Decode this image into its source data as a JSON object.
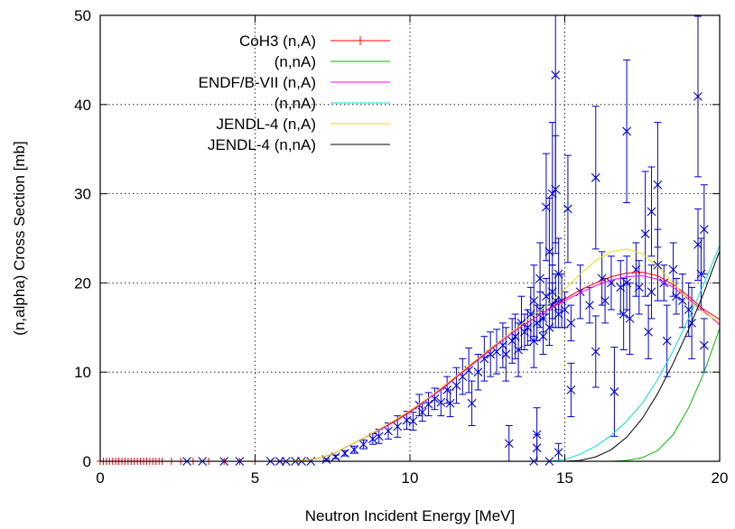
{
  "chart_data": {
    "type": "line",
    "title": "",
    "xlabel": "Neutron Incident Energy [MeV]",
    "ylabel": "(n,alpha) Cross Section [mb]",
    "xlim": [
      0,
      20
    ],
    "ylim": [
      0,
      50
    ],
    "xticks": [
      0,
      5,
      10,
      15,
      20
    ],
    "yticks": [
      0,
      10,
      20,
      30,
      40,
      50
    ],
    "grid": true,
    "legend_position": "top-left",
    "series": [
      {
        "name": "CoH3 (n,A)",
        "color": "#ff0000",
        "marker": "plus",
        "x": [
          0.0,
          0.1,
          0.2,
          0.3,
          0.4,
          0.5,
          0.6,
          0.7,
          0.8,
          0.9,
          1.0,
          1.1,
          1.2,
          1.3,
          1.4,
          1.5,
          1.6,
          1.7,
          1.8,
          1.9,
          2.0,
          2.3,
          2.6,
          3.0,
          3.5,
          4.0,
          4.5,
          5.0,
          5.5,
          6.0,
          6.5,
          7.0,
          7.5,
          8.0,
          8.5,
          9.0,
          9.5,
          10.0,
          10.5,
          11.0,
          11.5,
          12.0,
          12.5,
          13.0,
          13.5,
          14.0,
          14.5,
          15.0,
          15.5,
          16.0,
          16.5,
          17.0,
          17.5,
          18.0,
          18.5,
          19.0,
          19.5,
          20.0
        ],
        "y": [
          0,
          0,
          0,
          0,
          0,
          0,
          0,
          0,
          0,
          0,
          0,
          0,
          0,
          0,
          0,
          0,
          0,
          0,
          0,
          0,
          0,
          0,
          0,
          0,
          0,
          0,
          0,
          0,
          0,
          0.02,
          0.1,
          0.3,
          0.8,
          1.7,
          2.6,
          3.5,
          4.5,
          5.6,
          6.8,
          8.1,
          9.5,
          10.9,
          12.3,
          13.6,
          14.9,
          16.0,
          17.1,
          18.2,
          19.2,
          20.0,
          20.7,
          21.1,
          21.2,
          20.8,
          19.8,
          18.5,
          17.0,
          15.9
        ]
      },
      {
        "name": "(n,nA)",
        "color": "#00c000",
        "x": [
          14.5,
          15.0,
          15.5,
          16.0,
          16.5,
          17.0,
          17.5,
          18.0,
          18.5,
          19.0,
          19.5,
          20.0
        ],
        "y": [
          0,
          0,
          0,
          0,
          0,
          0.1,
          0.4,
          1.2,
          3.0,
          6.0,
          10.0,
          14.9
        ]
      },
      {
        "name": "ENDF/B-VII (n,A)",
        "color": "#ff00ff",
        "x": [
          5.0,
          5.5,
          6.0,
          6.5,
          7.0,
          7.5,
          8.0,
          8.5,
          9.0,
          9.5,
          10.0,
          10.5,
          11.0,
          11.5,
          12.0,
          12.5,
          13.0,
          13.5,
          14.0,
          14.5,
          15.0,
          15.5,
          16.0,
          16.5,
          17.0,
          17.5,
          18.0,
          18.5,
          19.0,
          19.5,
          20.0
        ],
        "y": [
          0,
          0,
          0.02,
          0.1,
          0.3,
          0.8,
          1.7,
          2.6,
          3.5,
          4.4,
          5.5,
          6.8,
          8.0,
          9.4,
          10.8,
          12.2,
          13.6,
          14.9,
          16.0,
          17.1,
          18.0,
          18.9,
          19.7,
          20.3,
          20.7,
          20.8,
          20.4,
          19.5,
          18.2,
          16.8,
          15.3
        ]
      },
      {
        "name": "(n,nA)",
        "color": "#00e0e0",
        "x": [
          14.5,
          15.0,
          15.5,
          16.0,
          16.5,
          17.0,
          17.5,
          18.0,
          18.5,
          19.0,
          19.5,
          20.0
        ],
        "y": [
          0,
          0.2,
          0.8,
          1.7,
          2.9,
          4.5,
          6.5,
          9.2,
          12.4,
          16.0,
          20.0,
          24.2
        ]
      },
      {
        "name": "JENDL-4 (n,A)",
        "color": "#e0e000",
        "x": [
          5.0,
          5.5,
          6.0,
          6.5,
          7.0,
          7.5,
          8.0,
          8.5,
          9.0,
          9.5,
          10.0,
          10.5,
          11.0,
          11.5,
          12.0,
          12.5,
          13.0,
          13.5,
          14.0,
          14.5,
          15.0,
          15.5,
          16.0,
          16.5,
          17.0,
          17.5,
          18.0,
          18.5,
          19.0,
          19.5,
          20.0
        ],
        "y": [
          0,
          0,
          0.02,
          0.1,
          0.3,
          0.8,
          1.7,
          2.6,
          3.6,
          4.6,
          5.7,
          6.9,
          8.2,
          9.6,
          11.0,
          12.4,
          13.8,
          15.1,
          16.4,
          17.7,
          19.3,
          21.0,
          22.5,
          23.5,
          23.8,
          23.3,
          21.8,
          20.0,
          18.0,
          16.6,
          15.6
        ]
      },
      {
        "name": "JENDL-4 (n,nA)",
        "color": "#000000",
        "x": [
          14.5,
          15.0,
          15.5,
          16.0,
          16.5,
          17.0,
          17.5,
          18.0,
          18.5,
          19.0,
          19.5,
          20.0
        ],
        "y": [
          0,
          0,
          0.1,
          0.5,
          1.3,
          2.7,
          4.8,
          7.6,
          11.0,
          14.8,
          19.0,
          23.6
        ]
      }
    ],
    "experimental": {
      "color": "#0000d0",
      "marker": "cross",
      "points": [
        [
          2.8,
          0,
          0
        ],
        [
          3.3,
          0,
          0
        ],
        [
          4.0,
          0,
          0
        ],
        [
          4.5,
          0,
          0
        ],
        [
          5.5,
          0,
          0
        ],
        [
          5.8,
          0,
          0
        ],
        [
          6.0,
          0,
          0
        ],
        [
          6.3,
          0,
          0
        ],
        [
          6.5,
          0,
          0
        ],
        [
          6.8,
          0,
          0
        ],
        [
          7.3,
          0.2,
          0.1
        ],
        [
          7.6,
          0.5,
          0.2
        ],
        [
          7.9,
          0.9,
          0.3
        ],
        [
          8.2,
          1.3,
          0.4
        ],
        [
          8.5,
          1.9,
          0.5
        ],
        [
          8.8,
          2.5,
          0.6
        ],
        [
          9.0,
          2.8,
          0.8
        ],
        [
          9.3,
          3.4,
          0.9
        ],
        [
          9.6,
          3.9,
          1.2
        ],
        [
          9.9,
          4.6,
          1.0
        ],
        [
          10.1,
          4.5,
          1.0
        ],
        [
          10.3,
          6.3,
          1.2
        ],
        [
          10.4,
          5.5,
          1.0
        ],
        [
          10.6,
          6.4,
          1.3
        ],
        [
          10.8,
          7.0,
          1.2
        ],
        [
          11.0,
          6.6,
          1.5
        ],
        [
          11.2,
          8.0,
          1.5
        ],
        [
          11.3,
          6.5,
          1.5
        ],
        [
          11.5,
          8.5,
          2.0
        ],
        [
          11.7,
          9.5,
          2.0
        ],
        [
          11.9,
          10.2,
          2.5
        ],
        [
          12.0,
          6.5,
          2.5
        ],
        [
          12.2,
          10.0,
          2.0
        ],
        [
          12.4,
          11.5,
          2.5
        ],
        [
          12.6,
          12.0,
          2.5
        ],
        [
          12.8,
          12.3,
          2.5
        ],
        [
          13.0,
          13.0,
          2.5
        ],
        [
          13.1,
          12.0,
          3.0
        ],
        [
          13.2,
          2.0,
          2.0
        ],
        [
          13.3,
          13.5,
          2.5
        ],
        [
          13.4,
          14.0,
          2.5
        ],
        [
          13.5,
          12.5,
          3.0
        ],
        [
          13.6,
          15.5,
          3.0
        ],
        [
          13.7,
          14.5,
          2.0
        ],
        [
          13.8,
          15.0,
          2.0
        ],
        [
          13.9,
          16.5,
          3.0
        ],
        [
          14.0,
          18.0,
          4.0
        ],
        [
          14.0,
          13.5,
          3.0
        ],
        [
          14.0,
          0,
          0
        ],
        [
          14.1,
          15.5,
          2.0
        ],
        [
          14.1,
          3.0,
          3.0
        ],
        [
          14.1,
          1.5,
          1.5
        ],
        [
          14.2,
          17.0,
          2.0
        ],
        [
          14.2,
          20.5,
          4.0
        ],
        [
          14.3,
          16.0,
          1.5
        ],
        [
          14.3,
          14.0,
          2.0
        ],
        [
          14.4,
          18.5,
          2.0
        ],
        [
          14.4,
          28.5,
          6.0
        ],
        [
          14.5,
          15.0,
          2.0
        ],
        [
          14.5,
          23.5,
          6.0
        ],
        [
          14.5,
          0,
          0
        ],
        [
          14.6,
          17.5,
          2.5
        ],
        [
          14.6,
          30.0,
          8.0
        ],
        [
          14.6,
          19.0,
          3.0
        ],
        [
          14.7,
          43.3,
          20.0
        ],
        [
          14.7,
          18.0,
          3.0
        ],
        [
          14.7,
          30.5,
          6.0
        ],
        [
          14.8,
          21.0,
          4.0
        ],
        [
          14.8,
          16.5,
          1.5
        ],
        [
          14.8,
          1.0,
          1.0
        ],
        [
          14.9,
          18.0,
          3.0
        ],
        [
          15.0,
          17.0,
          2.0
        ],
        [
          15.1,
          28.3,
          6.0
        ],
        [
          15.2,
          8.0,
          3.0
        ],
        [
          15.2,
          15.5,
          2.0
        ],
        [
          15.5,
          19.0,
          3.0
        ],
        [
          15.8,
          17.5,
          2.0
        ],
        [
          16.0,
          31.8,
          8.0
        ],
        [
          16.0,
          12.3,
          4.0
        ],
        [
          16.2,
          20.5,
          3.0
        ],
        [
          16.3,
          18.0,
          2.5
        ],
        [
          16.5,
          20.0,
          3.0
        ],
        [
          16.6,
          7.8,
          5.0
        ],
        [
          16.8,
          19.5,
          3.0
        ],
        [
          16.9,
          16.5,
          4.0
        ],
        [
          17.0,
          20.0,
          3.0
        ],
        [
          17.0,
          37.0,
          8.0
        ],
        [
          17.1,
          16.0,
          4.0
        ],
        [
          17.3,
          21.5,
          3.0
        ],
        [
          17.4,
          19.5,
          3.0
        ],
        [
          17.6,
          25.5,
          7.0
        ],
        [
          17.7,
          14.5,
          3.0
        ],
        [
          17.8,
          19.0,
          3.0
        ],
        [
          17.8,
          28.0,
          5.0
        ],
        [
          18.0,
          31.0,
          7.0
        ],
        [
          18.0,
          22.0,
          4.0
        ],
        [
          18.2,
          20.0,
          2.0
        ],
        [
          18.3,
          13.5,
          4.0
        ],
        [
          18.5,
          21.5,
          3.0
        ],
        [
          18.6,
          18.5,
          2.0
        ],
        [
          18.8,
          18.0,
          3.0
        ],
        [
          19.0,
          17.0,
          3.0
        ],
        [
          19.1,
          15.5,
          4.0
        ],
        [
          19.3,
          40.9,
          9.0
        ],
        [
          19.3,
          24.3,
          4.0
        ],
        [
          19.4,
          21.0,
          4.0
        ],
        [
          19.5,
          26.0,
          5.0
        ],
        [
          19.5,
          13.0,
          3.0
        ]
      ]
    }
  }
}
